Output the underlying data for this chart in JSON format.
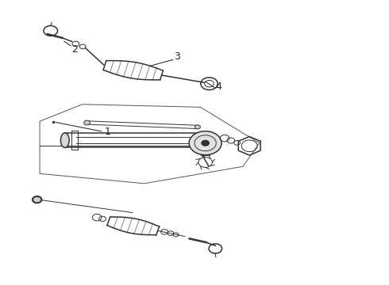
{
  "background_color": "#ffffff",
  "line_color": "#555555",
  "dark_line_color": "#333333",
  "label_color": "#222222",
  "fig_width": 4.9,
  "fig_height": 3.6,
  "dpi": 100,
  "label_fontsize": 9
}
